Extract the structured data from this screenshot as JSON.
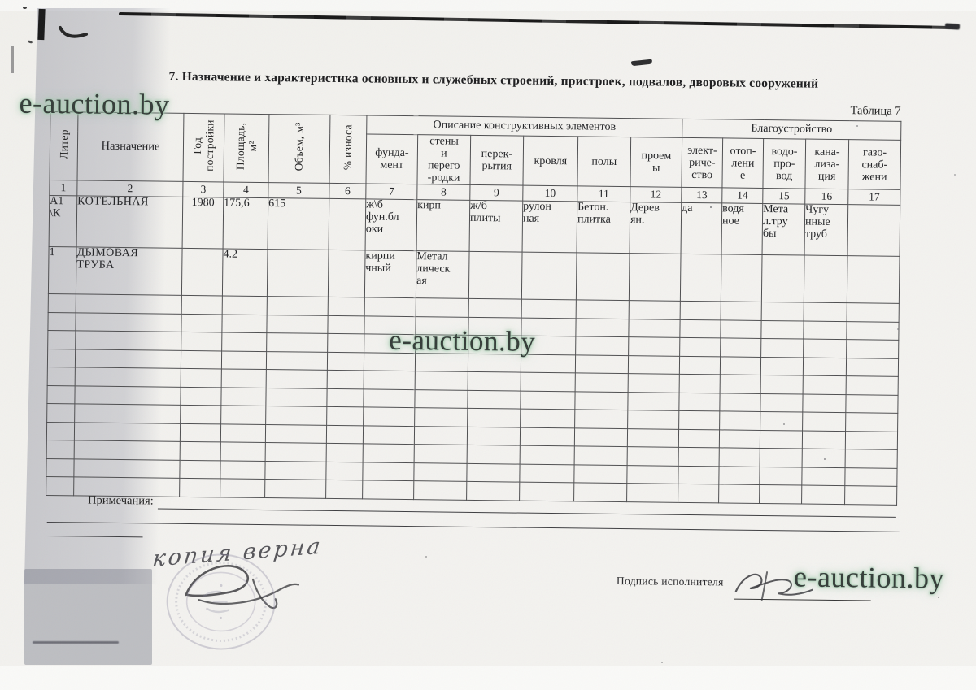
{
  "watermark": {
    "text": "e-auction.by"
  },
  "header": {
    "title": "7. Назначение и характеристика основных и служебных строений, пристроек, подвалов, дворовых сооружений",
    "table_label": "Таблица 7"
  },
  "table": {
    "groups": {
      "construct": "Описание конструктивных элементов",
      "amenities": "Благоустройство"
    },
    "headers": {
      "liter": "Литер",
      "purpose": "Назначение",
      "year": "Год\nпостройки",
      "area": "Площадь,\nм²",
      "volume": "Объем, м³",
      "wear": "% износа",
      "foundation": "фунда-\nмент",
      "walls": "стены\nи\nперего\n-родки",
      "ceilings": "перек-\nрытия",
      "roof": "кровля",
      "floors": "полы",
      "openings": "проем\nы",
      "electricity": "элект-\nриче-\nство",
      "heating": "отоп-\nлени\nе",
      "water": "водо-\nпро-\nвод",
      "sewerage": "кана-\nлиза-\nция",
      "gas": "газо-\nснаб-\nжени"
    },
    "column_numbers": [
      "1",
      "2",
      "3",
      "4",
      "5",
      "6",
      "7",
      "8",
      "9",
      "10",
      "11",
      "12",
      "13",
      "14",
      "15",
      "16",
      "17"
    ],
    "rows": [
      {
        "liter": "А1\n\\К",
        "purpose": "КОТЕЛЬНАЯ",
        "year": "1980",
        "area": "175,6",
        "volume": "615",
        "wear": "",
        "foundation": "ж\\б\nфун.бл\nоки",
        "walls": "кирп",
        "ceilings": "ж/б\nплиты",
        "roof": "рулон\nная",
        "floors": "Бетон.\nплитка",
        "openings": "Дерев\nян.",
        "electricity": "да",
        "heating": "водя\nное",
        "water": "Мета\nл.тру\nбы",
        "sewerage": "Чугу\nнные\nтруб",
        "gas": ""
      },
      {
        "liter": "1",
        "purpose": "ДЫМОВАЯ\nТРУБА",
        "year": "",
        "area": "4.2",
        "volume": "",
        "wear": "",
        "foundation": "кирпи\nчный",
        "walls": "Метал\nлическ\nая",
        "ceilings": "",
        "roof": "",
        "floors": "",
        "openings": "",
        "electricity": "",
        "heating": "",
        "water": "",
        "sewerage": "",
        "gas": ""
      }
    ],
    "empty_row_count": 11
  },
  "footer": {
    "notes_label": "Примечания:",
    "executor_label": "Подпись исполнителя",
    "handwritten_note": "копия верна"
  }
}
